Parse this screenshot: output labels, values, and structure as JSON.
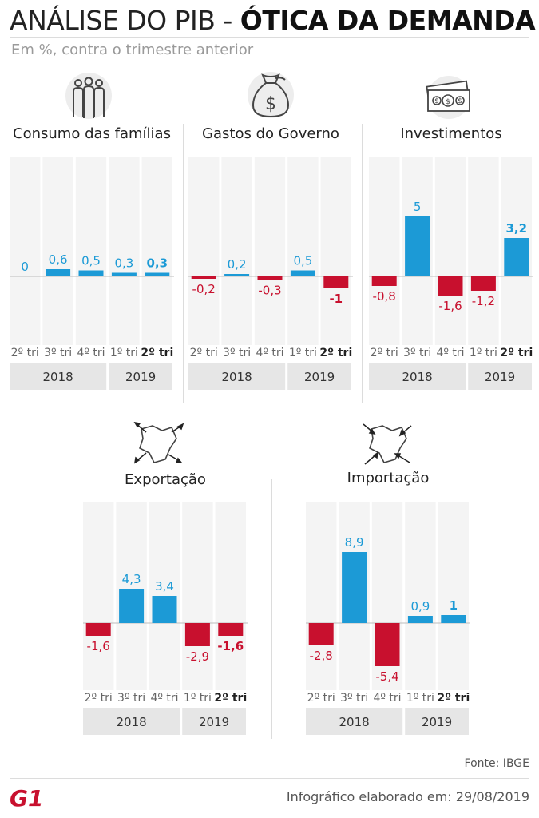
{
  "header": {
    "title_light": "ANÁLISE DO PIB - ",
    "title_bold": "ÓTICA DA DEMANDA",
    "subtitle": "Em %, contra o trimestre anterior"
  },
  "footer": {
    "source": "Fonte: IBGE",
    "credit": "Infográfico elaborado em: 29/08/2019",
    "logo_text": "G1"
  },
  "colors": {
    "positive": "#1c9ad6",
    "negative": "#c8102e",
    "column_bg": "#f4f4f4",
    "year_bg": "#e6e6e6",
    "logo": "#c8102e"
  },
  "chart_data": [
    {
      "type": "bar",
      "title": "Consumo das famílias",
      "icon": "people-icon",
      "categories": [
        "2º tri",
        "3º tri",
        "4º tri",
        "1º tri",
        "2º tri"
      ],
      "values": [
        0,
        0.6,
        0.5,
        0.3,
        0.3
      ],
      "value_labels": [
        "0",
        "0,6",
        "0,5",
        "0,3",
        "0,3"
      ],
      "years": [
        {
          "label": "2018",
          "span": 3
        },
        {
          "label": "2019",
          "span": 2
        }
      ]
    },
    {
      "type": "bar",
      "title": "Gastos do Governo",
      "icon": "money-bag-icon",
      "categories": [
        "2º tri",
        "3º tri",
        "4º tri",
        "1º tri",
        "2º tri"
      ],
      "values": [
        -0.2,
        0.2,
        -0.3,
        0.5,
        -1
      ],
      "value_labels": [
        "-0,2",
        "0,2",
        "-0,3",
        "0,5",
        "-1"
      ],
      "years": [
        {
          "label": "2018",
          "span": 3
        },
        {
          "label": "2019",
          "span": 2
        }
      ]
    },
    {
      "type": "bar",
      "title": "Investimentos",
      "icon": "banknotes-icon",
      "categories": [
        "2º tri",
        "3º tri",
        "4º tri",
        "1º tri",
        "2º tri"
      ],
      "values": [
        -0.8,
        5,
        -1.6,
        -1.2,
        3.2
      ],
      "value_labels": [
        "-0,8",
        "5",
        "-1,6",
        "-1,2",
        "3,2"
      ],
      "years": [
        {
          "label": "2018",
          "span": 3
        },
        {
          "label": "2019",
          "span": 2
        }
      ]
    },
    {
      "type": "bar",
      "title": "Exportação",
      "icon": "export-map-icon",
      "categories": [
        "2º tri",
        "3º tri",
        "4º tri",
        "1º tri",
        "2º tri"
      ],
      "values": [
        -1.6,
        4.3,
        3.4,
        -2.9,
        -1.6
      ],
      "value_labels": [
        "-1,6",
        "4,3",
        "3,4",
        "-2,9",
        "-1,6"
      ],
      "years": [
        {
          "label": "2018",
          "span": 3
        },
        {
          "label": "2019",
          "span": 2
        }
      ]
    },
    {
      "type": "bar",
      "title": "Importação",
      "icon": "import-map-icon",
      "categories": [
        "2º tri",
        "3º tri",
        "4º tri",
        "1º tri",
        "2º tri"
      ],
      "values": [
        -2.8,
        8.9,
        -5.4,
        0.9,
        1
      ],
      "value_labels": [
        "-2,8",
        "8,9",
        "-5,4",
        "0,9",
        "1"
      ],
      "years": [
        {
          "label": "2018",
          "span": 3
        },
        {
          "label": "2019",
          "span": 2
        }
      ]
    }
  ]
}
